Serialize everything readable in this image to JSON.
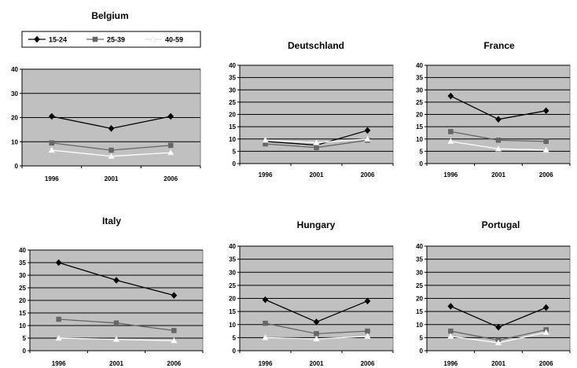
{
  "legend": {
    "entries": [
      {
        "label": "15-24",
        "color": "#000000",
        "marker": "diamond"
      },
      {
        "label": "25-39",
        "color": "#666666",
        "marker": "square"
      },
      {
        "label": "40-59",
        "color": "#ffffff",
        "marker": "triangle"
      }
    ]
  },
  "chart_data": [
    {
      "type": "line",
      "title": "Belgium",
      "categories": [
        "1996",
        "2001",
        "2006"
      ],
      "ylim": [
        0,
        40
      ],
      "yticks": [
        0,
        10,
        20,
        30,
        40
      ],
      "grid": true,
      "plot_background": "#c0c0c0",
      "series": [
        {
          "name": "15-24",
          "values": [
            20.5,
            15.5,
            20.5
          ],
          "color": "#000000",
          "marker": "diamond"
        },
        {
          "name": "25-39",
          "values": [
            9.5,
            6.5,
            8.5
          ],
          "color": "#666666",
          "marker": "square"
        },
        {
          "name": "40-59",
          "values": [
            6.5,
            4,
            5.5
          ],
          "color": "#ffffff",
          "marker": "triangle"
        }
      ]
    },
    {
      "type": "line",
      "title": "Deutschland",
      "categories": [
        "1996",
        "2001",
        "2006"
      ],
      "ylim": [
        0,
        40
      ],
      "yticks": [
        0,
        5,
        10,
        15,
        20,
        25,
        30,
        35,
        40
      ],
      "grid": true,
      "plot_background": "#c0c0c0",
      "series": [
        {
          "name": "15-24",
          "values": [
            9,
            7.5,
            13.5
          ],
          "color": "#000000",
          "marker": "diamond"
        },
        {
          "name": "25-39",
          "values": [
            8,
            6.5,
            9.5
          ],
          "color": "#666666",
          "marker": "square"
        },
        {
          "name": "40-59",
          "values": [
            9.5,
            8.5,
            10
          ],
          "color": "#ffffff",
          "marker": "triangle"
        }
      ]
    },
    {
      "type": "line",
      "title": "France",
      "categories": [
        "1996",
        "2001",
        "2006"
      ],
      "ylim": [
        0,
        40
      ],
      "yticks": [
        0,
        5,
        10,
        15,
        20,
        25,
        30,
        35,
        40
      ],
      "grid": true,
      "plot_background": "#c0c0c0",
      "series": [
        {
          "name": "15-24",
          "values": [
            27.5,
            18,
            21.5
          ],
          "color": "#000000",
          "marker": "diamond"
        },
        {
          "name": "25-39",
          "values": [
            13,
            9.5,
            9
          ],
          "color": "#666666",
          "marker": "square"
        },
        {
          "name": "40-59",
          "values": [
            9,
            6,
            5.5
          ],
          "color": "#ffffff",
          "marker": "triangle"
        }
      ]
    },
    {
      "type": "line",
      "title": "Italy",
      "categories": [
        "1996",
        "2001",
        "2006"
      ],
      "ylim": [
        0,
        40
      ],
      "yticks": [
        0,
        5,
        10,
        15,
        20,
        25,
        30,
        35,
        40
      ],
      "grid": true,
      "plot_background": "#c0c0c0",
      "series": [
        {
          "name": "15-24",
          "values": [
            35,
            28,
            22
          ],
          "color": "#000000",
          "marker": "diamond"
        },
        {
          "name": "25-39",
          "values": [
            12.5,
            11,
            8
          ],
          "color": "#666666",
          "marker": "square"
        },
        {
          "name": "40-59",
          "values": [
            5,
            4.5,
            4
          ],
          "color": "#ffffff",
          "marker": "triangle"
        }
      ]
    },
    {
      "type": "line",
      "title": "Hungary",
      "categories": [
        "1996",
        "2001",
        "2006"
      ],
      "ylim": [
        0,
        40
      ],
      "yticks": [
        0,
        5,
        10,
        15,
        20,
        25,
        30,
        35,
        40
      ],
      "grid": true,
      "plot_background": "#c0c0c0",
      "series": [
        {
          "name": "15-24",
          "values": [
            19.5,
            11,
            19
          ],
          "color": "#000000",
          "marker": "diamond"
        },
        {
          "name": "25-39",
          "values": [
            10.5,
            6.5,
            7.5
          ],
          "color": "#666666",
          "marker": "square"
        },
        {
          "name": "40-59",
          "values": [
            5,
            4.5,
            5.5
          ],
          "color": "#ffffff",
          "marker": "triangle"
        }
      ]
    },
    {
      "type": "line",
      "title": "Portugal",
      "categories": [
        "1996",
        "2001",
        "2006"
      ],
      "ylim": [
        0,
        40
      ],
      "yticks": [
        0,
        5,
        10,
        15,
        20,
        25,
        30,
        35,
        40
      ],
      "grid": true,
      "plot_background": "#c0c0c0",
      "series": [
        {
          "name": "15-24",
          "values": [
            17,
            9,
            16.5
          ],
          "color": "#000000",
          "marker": "diamond"
        },
        {
          "name": "25-39",
          "values": [
            7.5,
            4,
            8
          ],
          "color": "#666666",
          "marker": "square"
        },
        {
          "name": "40-59",
          "values": [
            5.5,
            3,
            7
          ],
          "color": "#ffffff",
          "marker": "triangle"
        }
      ]
    }
  ]
}
